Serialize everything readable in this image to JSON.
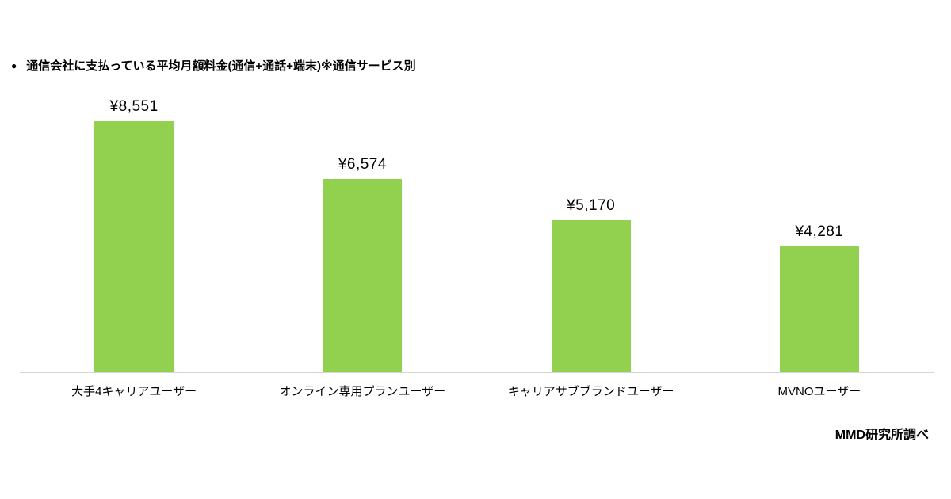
{
  "title": {
    "bullet": "●",
    "text": "通信会社に支払っている平均月額料金(通信+通話+端末)※通信サービス別"
  },
  "source": "MMD研究所調べ",
  "chart_data": {
    "type": "bar",
    "title": "通信会社に支払っている平均月額料金(通信+通話+端末)※通信サービス別",
    "categories": [
      "大手4キャリアユーザー",
      "オンライン専用プランユーザー",
      "キャリアサブブランドユーザー",
      "MVNOユーザー"
    ],
    "values": [
      8551,
      6574,
      5170,
      4281
    ],
    "value_labels": [
      "¥8,551",
      "¥6,574",
      "¥5,170",
      "¥4,281"
    ],
    "currency": "JPY",
    "bar_color": "#92d050",
    "baseline_color": "#d6d6d6",
    "xlabel": "",
    "ylabel": "",
    "ylim": [
      0,
      8551
    ],
    "grid": false,
    "legend": false,
    "source_note": "MMD研究所調べ"
  }
}
